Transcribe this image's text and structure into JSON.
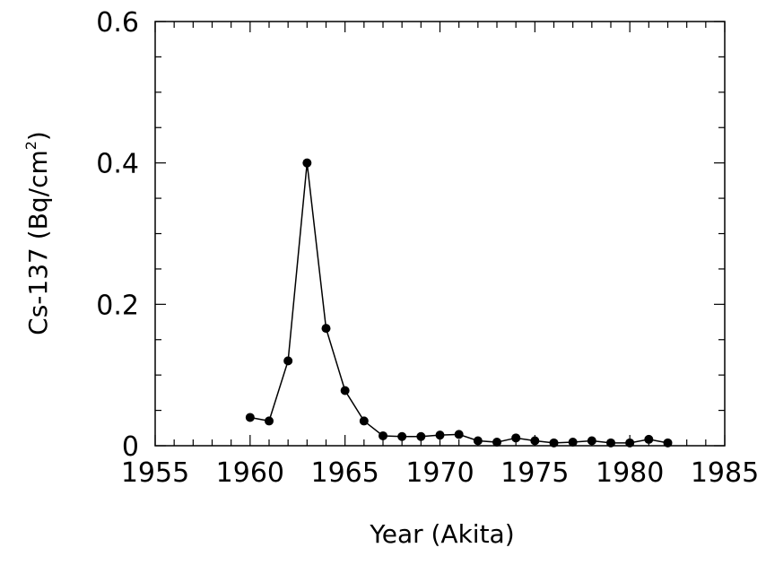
{
  "chart_data": {
    "type": "line",
    "xlabel": "Year (Akita)",
    "ylabel_main": "Cs-137 (Bq/cm",
    "ylabel_sup": "2",
    "ylabel_close": ")",
    "xlim": [
      1955,
      1985
    ],
    "ylim": [
      0,
      0.6
    ],
    "x_ticks": [
      1955,
      1960,
      1965,
      1970,
      1975,
      1980,
      1985
    ],
    "x_tick_labels": [
      "1955",
      "1960",
      "1965",
      "1970",
      "1975",
      "1980",
      "1985"
    ],
    "y_ticks": [
      0,
      0.2,
      0.4,
      0.6
    ],
    "y_tick_labels": [
      "0",
      "0.2",
      "0.4",
      "0.6"
    ],
    "grid": false,
    "series": [
      {
        "x": [
          1960,
          1961,
          1962,
          1963,
          1964,
          1965,
          1966,
          1967,
          1968,
          1969,
          1970,
          1971,
          1972,
          1973,
          1974,
          1975,
          1976,
          1977,
          1978,
          1979,
          1980,
          1981,
          1982
        ],
        "y": [
          0.04,
          0.035,
          0.12,
          0.4,
          0.166,
          0.078,
          0.035,
          0.014,
          0.013,
          0.013,
          0.015,
          0.016,
          0.007,
          0.005,
          0.011,
          0.007,
          0.004,
          0.005,
          0.007,
          0.004,
          0.004,
          0.009,
          0.004
        ]
      }
    ]
  }
}
